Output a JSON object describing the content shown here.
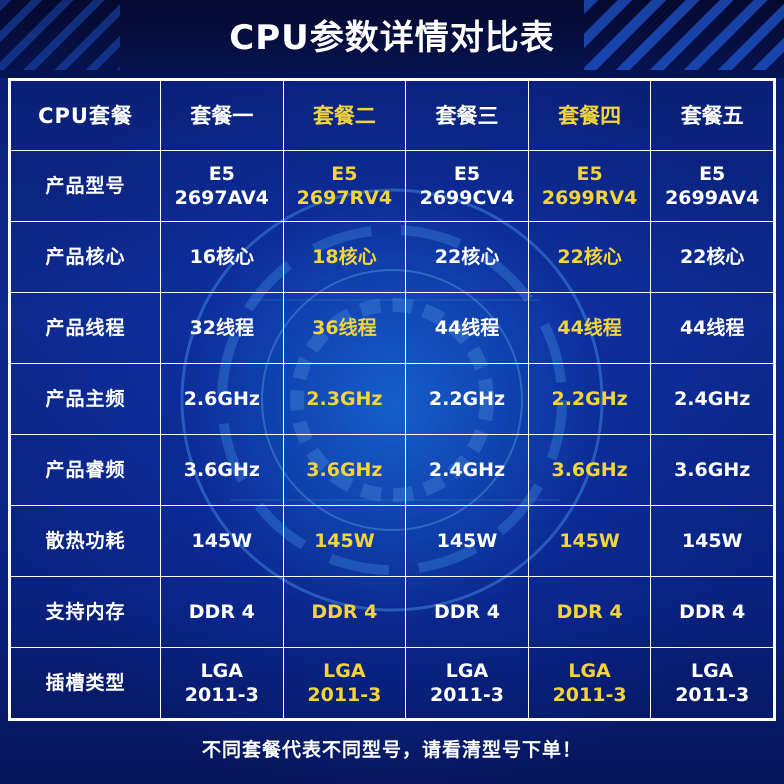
{
  "title": "CPU参数详情对比表",
  "footer": "不同套餐代表不同型号，请看清型号下单！",
  "colors": {
    "highlight": "#f3d53a",
    "text": "#ffffff",
    "background": "#0d2a8f"
  },
  "table": {
    "corner": "CPU套餐",
    "columns": [
      "套餐一",
      "套餐二",
      "套餐三",
      "套餐四",
      "套餐五"
    ],
    "highlighted_columns": [
      1,
      3
    ],
    "rows": [
      {
        "label": "产品型号",
        "cells": [
          [
            "E5",
            "2697AV4"
          ],
          [
            "E5",
            "2697RV4"
          ],
          [
            "E5",
            "2699CV4"
          ],
          [
            "E5",
            "2699RV4"
          ],
          [
            "E5",
            "2699AV4"
          ]
        ]
      },
      {
        "label": "产品核心",
        "cells": [
          [
            "16核心"
          ],
          [
            "18核心"
          ],
          [
            "22核心"
          ],
          [
            "22核心"
          ],
          [
            "22核心"
          ]
        ]
      },
      {
        "label": "产品线程",
        "cells": [
          [
            "32线程"
          ],
          [
            "36线程"
          ],
          [
            "44线程"
          ],
          [
            "44线程"
          ],
          [
            "44线程"
          ]
        ]
      },
      {
        "label": "产品主频",
        "cells": [
          [
            "2.6GHz"
          ],
          [
            "2.3GHz"
          ],
          [
            "2.2GHz"
          ],
          [
            "2.2GHz"
          ],
          [
            "2.4GHz"
          ]
        ]
      },
      {
        "label": "产品睿频",
        "cells": [
          [
            "3.6GHz"
          ],
          [
            "3.6GHz"
          ],
          [
            "2.4GHz"
          ],
          [
            "3.6GHz"
          ],
          [
            "3.6GHz"
          ]
        ]
      },
      {
        "label": "散热功耗",
        "cells": [
          [
            "145W"
          ],
          [
            "145W"
          ],
          [
            "145W"
          ],
          [
            "145W"
          ],
          [
            "145W"
          ]
        ]
      },
      {
        "label": "支持内存",
        "cells": [
          [
            "DDR 4"
          ],
          [
            "DDR 4"
          ],
          [
            "DDR 4"
          ],
          [
            "DDR 4"
          ],
          [
            "DDR 4"
          ]
        ]
      },
      {
        "label": "插槽类型",
        "cells": [
          [
            "LGA",
            "2011-3"
          ],
          [
            "LGA",
            "2011-3"
          ],
          [
            "LGA",
            "2011-3"
          ],
          [
            "LGA",
            "2011-3"
          ],
          [
            "LGA",
            "2011-3"
          ]
        ]
      }
    ]
  }
}
